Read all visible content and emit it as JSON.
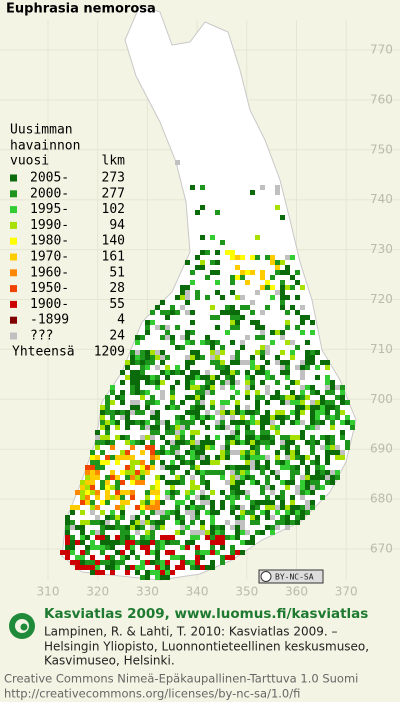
{
  "title": "Euphrasia nemorosa",
  "legend": {
    "heading": [
      "Uusimman",
      "havainnon"
    ],
    "year_header": "vuosi",
    "count_header": "lkm",
    "rows": [
      {
        "label": "2005-",
        "count": 273,
        "color": "#0b6b0b"
      },
      {
        "label": "2000-",
        "count": 277,
        "color": "#1e961e"
      },
      {
        "label": "1995-",
        "count": 102,
        "color": "#33cc33"
      },
      {
        "label": "1990-",
        "count": 94,
        "color": "#a8e000"
      },
      {
        "label": "1980-",
        "count": 140,
        "color": "#ffff00"
      },
      {
        "label": "1970-",
        "count": 161,
        "color": "#ffcc00"
      },
      {
        "label": "1960-",
        "count": 51,
        "color": "#ff8800"
      },
      {
        "label": "1950-",
        "count": 28,
        "color": "#ee4400"
      },
      {
        "label": "1900-",
        "count": 55,
        "color": "#cc0000"
      },
      {
        "label": "-1899",
        "count": 4,
        "color": "#800000"
      },
      {
        "label": "???",
        "count": 24,
        "color": "#c0c0c0"
      }
    ],
    "total": {
      "label": "Yhteensä",
      "count": 1209
    }
  },
  "y_labels": [
    770,
    760,
    750,
    740,
    730,
    720,
    710,
    700,
    690,
    680,
    670
  ],
  "x_labels": [
    310,
    320,
    330,
    340,
    350,
    360,
    370
  ],
  "badge": "BY-NC-SA",
  "footer": {
    "heading": "Kasviatlas 2009, www.luomus.fi/kasviatlas",
    "citation": [
      "Lampinen, R. & Lahti, T. 2010: Kasviatlas 2009. –",
      "Helsingin Yliopisto, Luonnontieteellinen keskusmuseo,",
      "Kasvimuseo, Helsinki."
    ],
    "license": [
      "Creative Commons Nimeä-Epäkaupallinen-Tarttuva 1.0 Suomi",
      "http://creativecommons.org/licenses/by-nc-sa/1.0/fi"
    ]
  }
}
